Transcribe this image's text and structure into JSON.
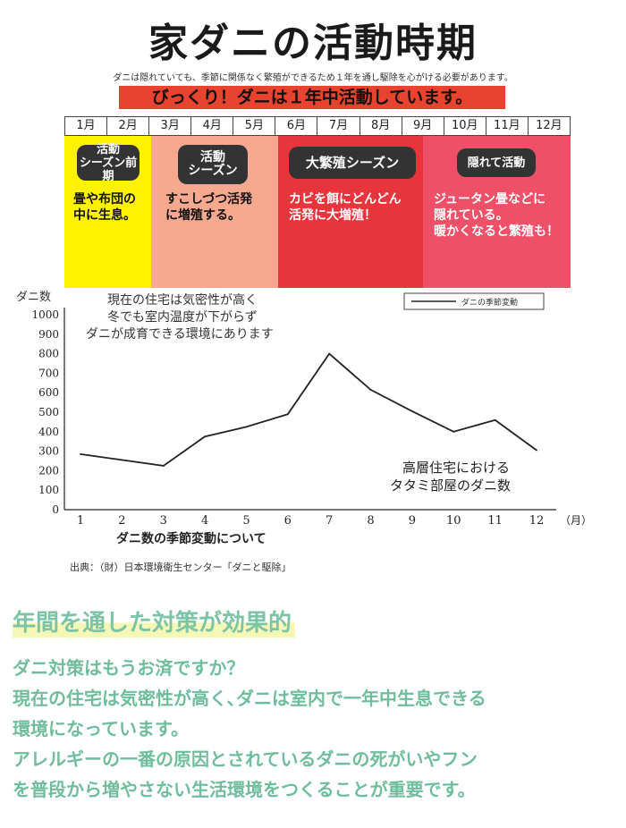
{
  "title": "家ダニの活動時期",
  "subtitle": "ダニは隠れていても、季節に関係なく繁殖ができるため１年を通し駆除を心がける必要があります。",
  "banner": "びっくり！ダニは１年中活動しています。",
  "months": [
    "1月",
    "2月",
    "3月",
    "4月",
    "5月",
    "6月",
    "7月",
    "8月",
    "9月",
    "10月",
    "11月",
    "12月"
  ],
  "seasons": [
    {
      "label": "活動\nシーズン前期",
      "desc": "畳や布団の\n中に生息。",
      "color": "#fff200"
    },
    {
      "label": "活動\nシーズン",
      "desc": "すこしづつ活発\nに増殖する。",
      "color": "#f6a98f"
    },
    {
      "label": "大繁殖シーズン",
      "desc": "カビを餌にどんどん\n活発に大増殖！",
      "color": "#e8343b"
    },
    {
      "label": "隠れて活動",
      "desc": "ジュータン畳などに\n隠れている。\n暖かくなると繁殖も！",
      "color": "#ee5068"
    }
  ],
  "chart_data": {
    "type": "line",
    "title": "",
    "xlabel": "ダニ数の季節変動について",
    "ylabel": "ダニ数",
    "x_unit": "（月）",
    "x": [
      1,
      2,
      3,
      4,
      5,
      6,
      7,
      8,
      9,
      10,
      11,
      12
    ],
    "x_tick_labels": [
      "1",
      "2",
      "3",
      "4",
      "5",
      "6",
      "7",
      "8",
      "9",
      "10",
      "11",
      "12"
    ],
    "y_ticks": [
      0,
      100,
      200,
      300,
      400,
      500,
      600,
      700,
      800,
      900,
      1000
    ],
    "ylim": [
      0,
      1000
    ],
    "grid": false,
    "legend_position": "top-right",
    "series": [
      {
        "name": "ダニの季節変動",
        "values": [
          285,
          255,
          225,
          375,
          425,
          490,
          800,
          615,
          505,
          400,
          460,
          305
        ],
        "color": "#222222"
      }
    ],
    "annotations": [
      "現在の住宅は気密性が高く",
      "冬でも室内温度が下がらず",
      "ダニが成育できる環境にあります",
      "高層住宅における",
      "タタミ部屋のダニ数"
    ]
  },
  "source": "出典：（財）日本環境衛生センター「ダニと駆除」",
  "section_heading": "年間を通した対策が効果的",
  "body_lines": [
    "ダニ対策はもうお済ですか？",
    "現在の住宅は気密性が高く､ダニは室内で一年中生息できる",
    "環境になっています。",
    "アレルギーの一番の原因とされているダニの死がいやフン",
    "を普段から増やさない生活環境をつくることが重要です。"
  ]
}
